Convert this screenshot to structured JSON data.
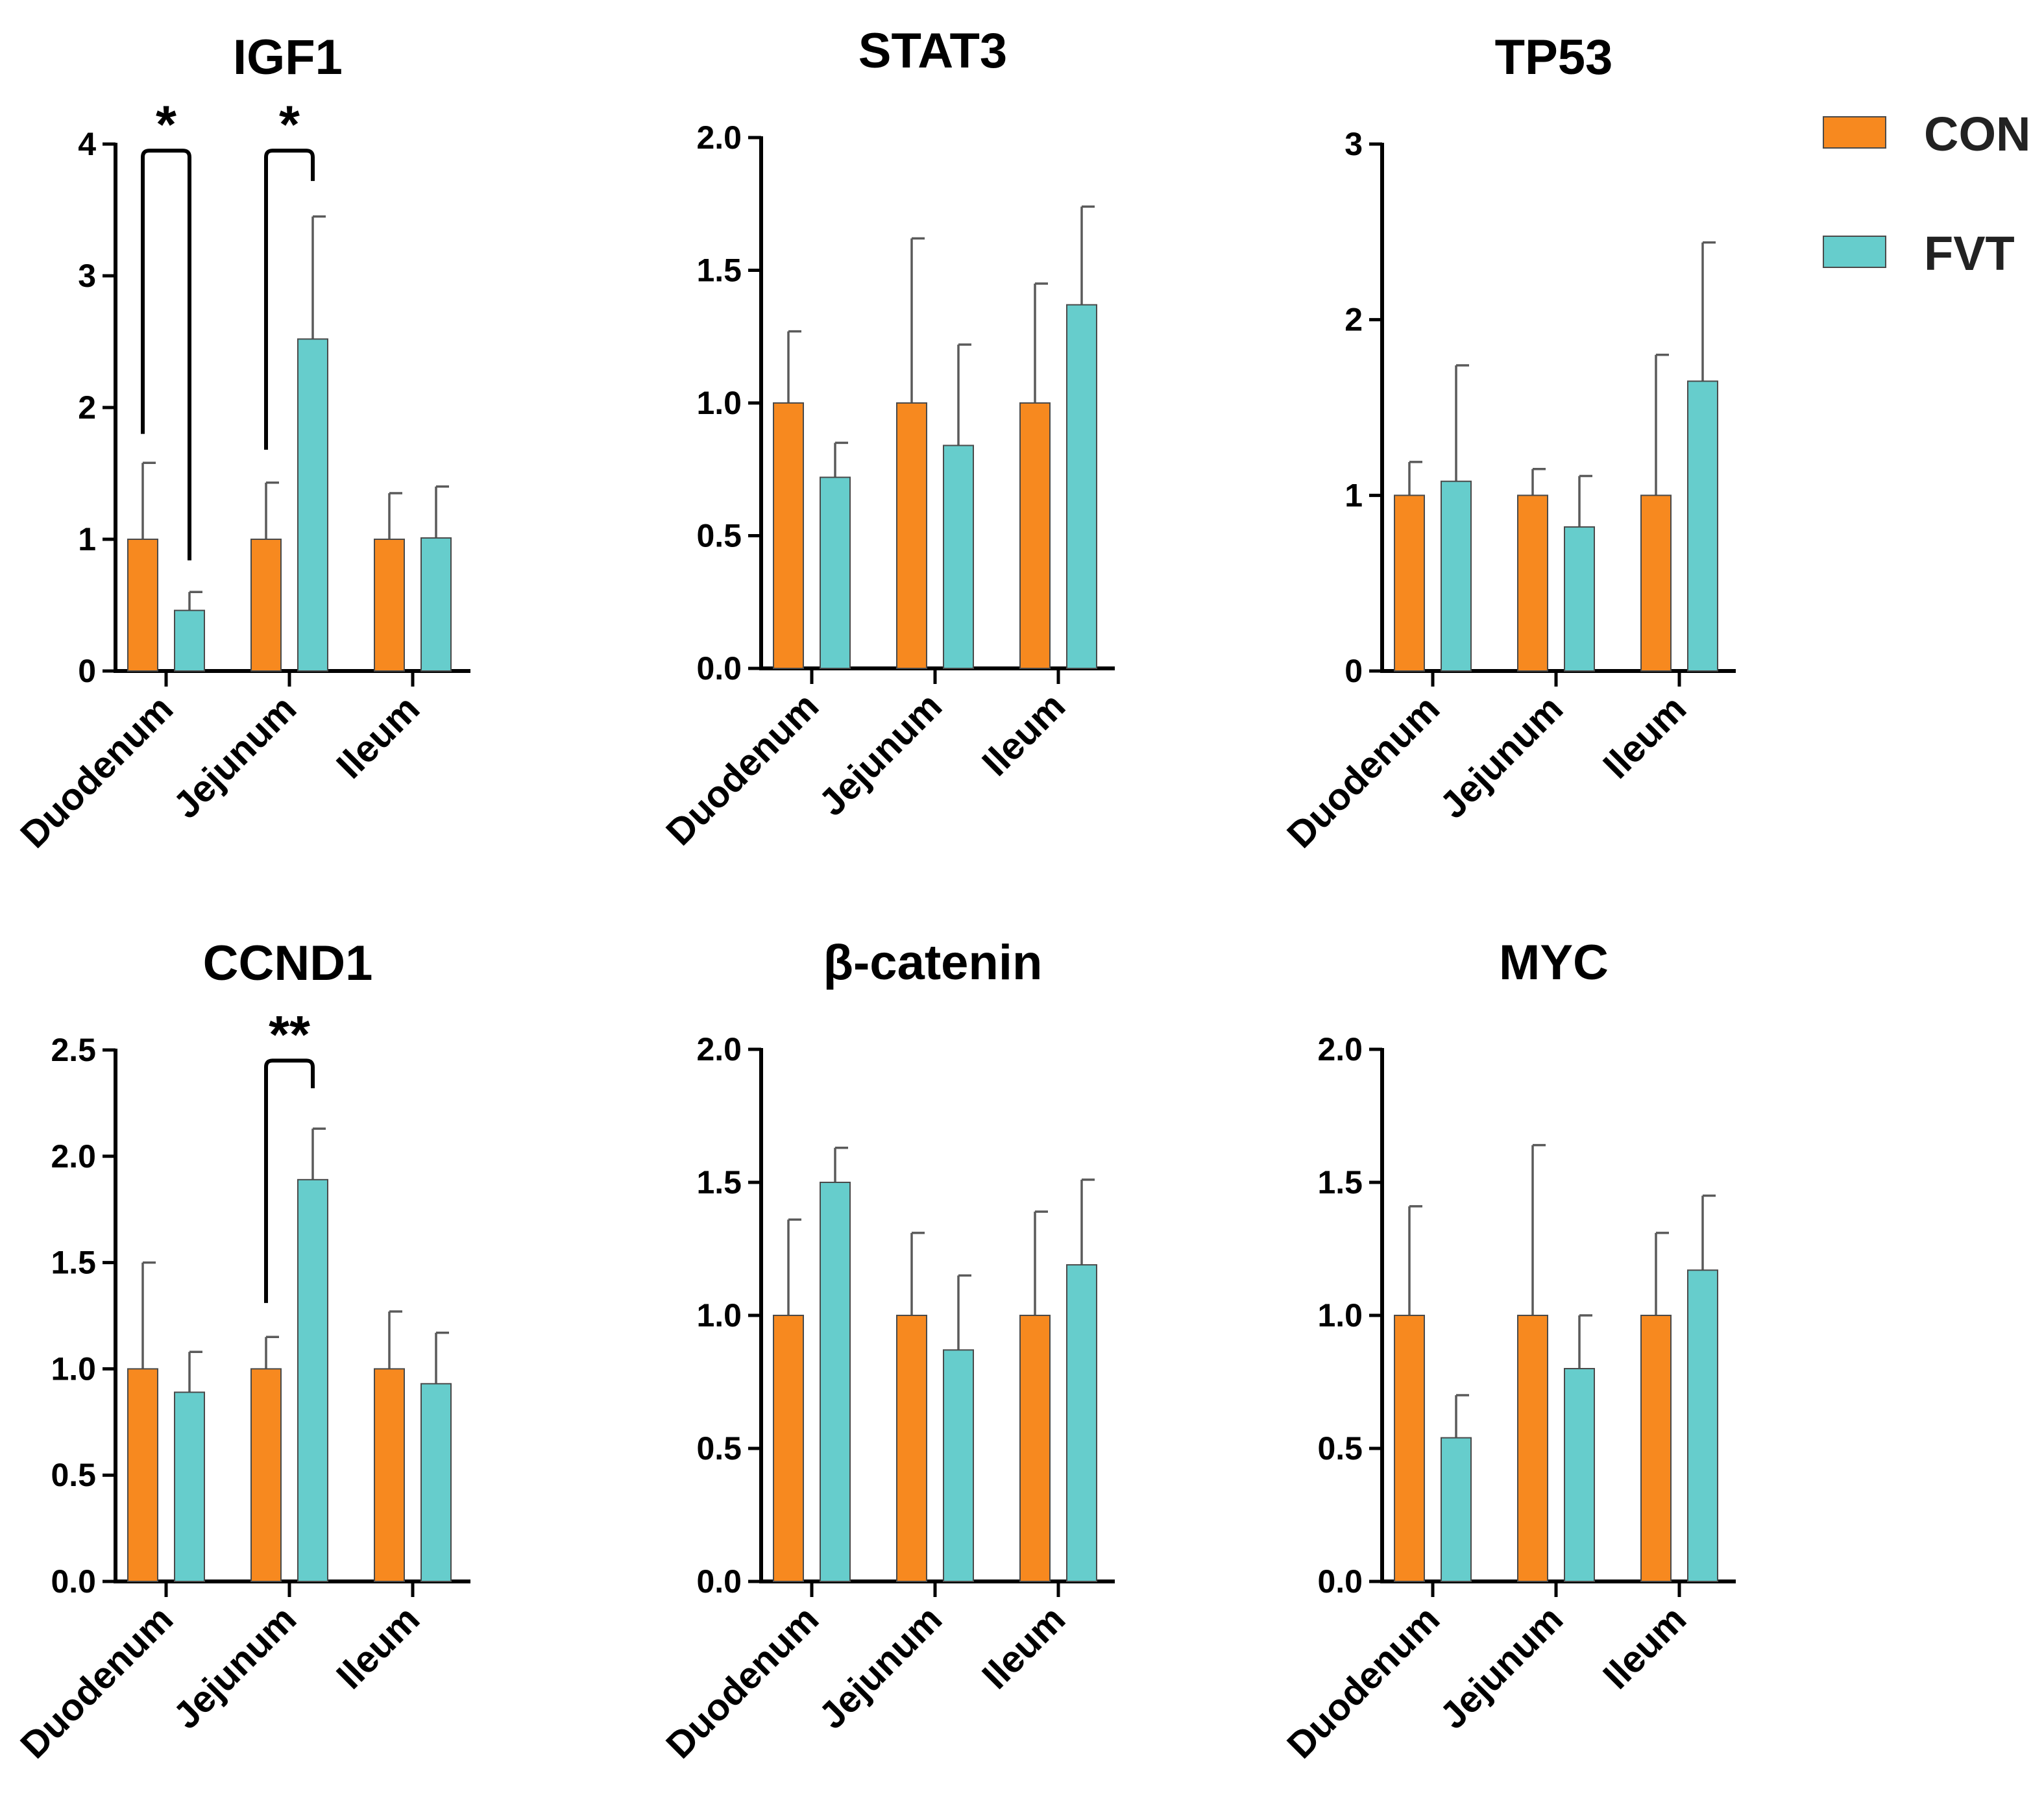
{
  "legend": [
    {
      "label": "CON",
      "color": "#F7891F"
    },
    {
      "label": "FVT",
      "color": "#66CDCC"
    }
  ],
  "colors": {
    "axis": "#000000",
    "error_bar": "#5a5a5a",
    "bar_edge": "#4a4a4a"
  },
  "chart_data": [
    {
      "type": "bar",
      "title": "IGF1",
      "categories": [
        "Duodenum",
        "Jejunum",
        "Ileum"
      ],
      "ylim": [
        0,
        4
      ],
      "yticks": [
        "0",
        "1",
        "2",
        "3",
        "4"
      ],
      "series": [
        {
          "name": "CON",
          "values": [
            1.0,
            1.0,
            1.0
          ],
          "errors": [
            0.58,
            0.43,
            0.35
          ]
        },
        {
          "name": "FVT",
          "values": [
            0.46,
            2.52,
            1.01
          ],
          "errors": [
            0.14,
            0.93,
            0.39
          ]
        }
      ],
      "significance": [
        {
          "category": 0,
          "label": "*",
          "left_from": 1.8,
          "right_from": 0.84,
          "top": 3.95
        },
        {
          "category": 1,
          "label": "*",
          "left_from": 1.68,
          "right_from": 3.72,
          "top": 3.95
        }
      ]
    },
    {
      "type": "bar",
      "title": "STAT3",
      "categories": [
        "Duodenum",
        "Jejunum",
        "Ileum"
      ],
      "ylim": [
        0,
        2
      ],
      "yticks": [
        "0.0",
        "0.5",
        "1.0",
        "1.5",
        "2.0"
      ],
      "series": [
        {
          "name": "CON",
          "values": [
            1.0,
            1.0,
            1.0
          ],
          "errors": [
            0.27,
            0.62,
            0.45
          ]
        },
        {
          "name": "FVT",
          "values": [
            0.72,
            0.84,
            1.37
          ],
          "errors": [
            0.13,
            0.38,
            0.37
          ]
        }
      ],
      "significance": []
    },
    {
      "type": "bar",
      "title": "TP53",
      "categories": [
        "Duodenum",
        "Jejunum",
        "Ileum"
      ],
      "ylim": [
        0,
        3
      ],
      "yticks": [
        "0",
        "1",
        "2",
        "3"
      ],
      "series": [
        {
          "name": "CON",
          "values": [
            1.0,
            1.0,
            1.0
          ],
          "errors": [
            0.19,
            0.15,
            0.8
          ]
        },
        {
          "name": "FVT",
          "values": [
            1.08,
            0.82,
            1.65
          ],
          "errors": [
            0.66,
            0.29,
            0.79
          ]
        }
      ],
      "significance": []
    },
    {
      "type": "bar",
      "title": "CCND1",
      "categories": [
        "Duodenum",
        "Jejunum",
        "Ileum"
      ],
      "ylim": [
        0,
        2.5
      ],
      "yticks": [
        "0.0",
        "0.5",
        "1.0",
        "1.5",
        "2.0",
        "2.5"
      ],
      "series": [
        {
          "name": "CON",
          "values": [
            1.0,
            1.0,
            1.0
          ],
          "errors": [
            0.5,
            0.15,
            0.27
          ]
        },
        {
          "name": "FVT",
          "values": [
            0.89,
            1.89,
            0.93
          ],
          "errors": [
            0.19,
            0.24,
            0.24
          ]
        }
      ],
      "significance": [
        {
          "category": 1,
          "label": "**",
          "left_from": 1.31,
          "right_from": 2.32,
          "top": 2.45
        }
      ]
    },
    {
      "type": "bar",
      "title": "β-catenin",
      "categories": [
        "Duodenum",
        "Jejunum",
        "Ileum"
      ],
      "ylim": [
        0,
        2
      ],
      "yticks": [
        "0.0",
        "0.5",
        "1.0",
        "1.5",
        "2.0"
      ],
      "series": [
        {
          "name": "CON",
          "values": [
            1.0,
            1.0,
            1.0
          ],
          "errors": [
            0.36,
            0.31,
            0.39
          ]
        },
        {
          "name": "FVT",
          "values": [
            1.5,
            0.87,
            1.19
          ],
          "errors": [
            0.13,
            0.28,
            0.32
          ]
        }
      ],
      "significance": []
    },
    {
      "type": "bar",
      "title": "MYC",
      "categories": [
        "Duodenum",
        "Jejunum",
        "Ileum"
      ],
      "ylim": [
        0,
        2
      ],
      "yticks": [
        "0.0",
        "0.5",
        "1.0",
        "1.5",
        "2.0"
      ],
      "series": [
        {
          "name": "CON",
          "values": [
            1.0,
            1.0,
            1.0
          ],
          "errors": [
            0.41,
            0.64,
            0.31
          ]
        },
        {
          "name": "FVT",
          "values": [
            0.54,
            0.8,
            1.17
          ],
          "errors": [
            0.16,
            0.2,
            0.28
          ]
        }
      ],
      "significance": []
    }
  ]
}
